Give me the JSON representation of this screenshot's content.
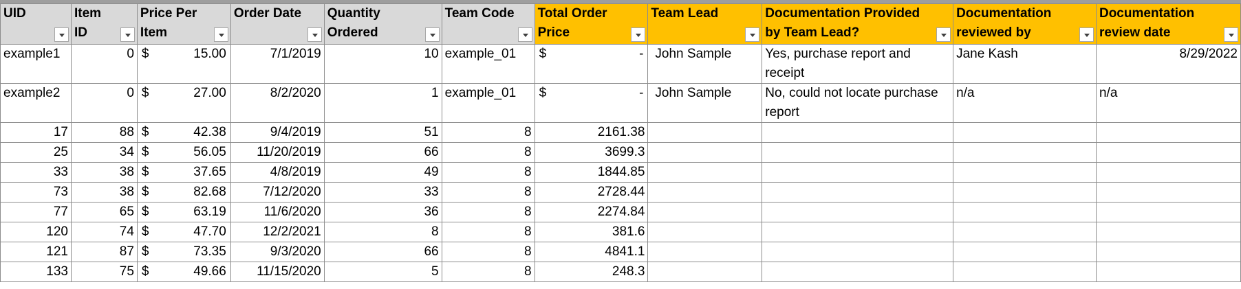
{
  "headers": [
    {
      "label": "UID",
      "style": "gray"
    },
    {
      "label": "Item ID",
      "style": "gray"
    },
    {
      "label": "Price Per Item",
      "style": "gray"
    },
    {
      "label": "Order Date",
      "style": "gray"
    },
    {
      "label": "Quantity Ordered",
      "style": "gray"
    },
    {
      "label": "Team Code",
      "style": "gray"
    },
    {
      "label": "Total Order Price",
      "style": "gold"
    },
    {
      "label": "Team Lead",
      "style": "gold"
    },
    {
      "label": "Documentation Provided by Team Lead?",
      "style": "gold"
    },
    {
      "label": "Documentation reviewed by",
      "style": "gold"
    },
    {
      "label": "Documentation review date",
      "style": "gold"
    }
  ],
  "currency_symbol": "$",
  "example_rows": [
    {
      "uid": "example1",
      "item_id": "0",
      "price": "15.00",
      "order_date": "7/1/2019",
      "quantity": "10",
      "team_code": "example_01",
      "total": "-",
      "team_lead": "John Sample",
      "doc_provided": "Yes, purchase report and receipt",
      "reviewed_by": "Jane Kash",
      "review_date": "8/29/2022"
    },
    {
      "uid": "example2",
      "item_id": "0",
      "price": "27.00",
      "order_date": "8/2/2020",
      "quantity": "1",
      "team_code": "example_01",
      "total": "-",
      "team_lead": "John Sample",
      "doc_provided": "No, could not locate purchase report",
      "reviewed_by": "n/a",
      "review_date": "n/a"
    }
  ],
  "data_rows": [
    {
      "uid": "17",
      "item_id": "88",
      "price": "42.38",
      "order_date": "9/4/2019",
      "quantity": "51",
      "team_code": "8",
      "total": "2161.38"
    },
    {
      "uid": "25",
      "item_id": "34",
      "price": "56.05",
      "order_date": "11/20/2019",
      "quantity": "66",
      "team_code": "8",
      "total": "3699.3"
    },
    {
      "uid": "33",
      "item_id": "38",
      "price": "37.65",
      "order_date": "4/8/2019",
      "quantity": "49",
      "team_code": "8",
      "total": "1844.85"
    },
    {
      "uid": "73",
      "item_id": "38",
      "price": "82.68",
      "order_date": "7/12/2020",
      "quantity": "33",
      "team_code": "8",
      "total": "2728.44"
    },
    {
      "uid": "77",
      "item_id": "65",
      "price": "63.19",
      "order_date": "11/6/2020",
      "quantity": "36",
      "team_code": "8",
      "total": "2274.84"
    },
    {
      "uid": "120",
      "item_id": "74",
      "price": "47.70",
      "order_date": "12/2/2021",
      "quantity": "8",
      "team_code": "8",
      "total": "381.6"
    },
    {
      "uid": "121",
      "item_id": "87",
      "price": "73.35",
      "order_date": "9/3/2020",
      "quantity": "66",
      "team_code": "8",
      "total": "4841.1"
    },
    {
      "uid": "133",
      "item_id": "75",
      "price": "49.66",
      "order_date": "11/15/2020",
      "quantity": "5",
      "team_code": "8",
      "total": "248.3"
    }
  ],
  "colors": {
    "header_gray": "#d9d9d9",
    "header_gold": "#ffc000",
    "grid": "#8c8c8c"
  }
}
